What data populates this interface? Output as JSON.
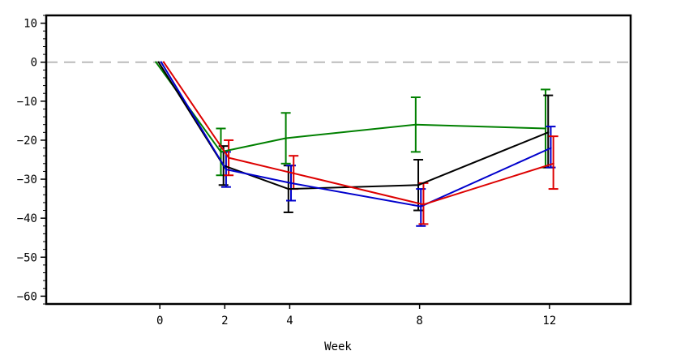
{
  "chart_data": {
    "type": "line",
    "title": "",
    "xlabel": "Week",
    "ylabel": "",
    "xlim": [
      -3.5,
      14.5
    ],
    "ylim": [
      -62,
      12
    ],
    "x_ticks": [
      0,
      2,
      4,
      8,
      12
    ],
    "x_tick_labels": [
      "0",
      "2",
      "4",
      "8",
      "12"
    ],
    "y_ticks": [
      10,
      0,
      -10,
      -20,
      -30,
      -40,
      -50,
      -60
    ],
    "y_tick_labels": [
      "10",
      "0",
      "−10",
      "−20",
      "−30",
      "−40",
      "−50",
      "−60"
    ],
    "reference_line": {
      "y": 0,
      "style": "dashed",
      "color": "#bbbbbb"
    },
    "grid": false,
    "legend": "none",
    "series": [
      {
        "color": "#008000",
        "x": [
          0,
          2,
          4,
          8,
          12
        ],
        "values": [
          0,
          -23,
          -19.5,
          -16,
          -17
        ],
        "err_low": [
          null,
          -29,
          -26,
          -23,
          -27
        ],
        "err_high": [
          null,
          -17,
          -13,
          -9,
          -7
        ]
      },
      {
        "color": "#000000",
        "x": [
          0,
          2,
          4,
          8,
          12
        ],
        "values": [
          0,
          -26.5,
          -32.5,
          -31.5,
          -18
        ],
        "err_low": [
          null,
          -31.5,
          -38.5,
          -38,
          -27
        ],
        "err_high": [
          null,
          -21.5,
          -26.5,
          -25,
          -8.5
        ]
      },
      {
        "color": "#0000cc",
        "x": [
          0,
          2,
          4,
          8,
          12
        ],
        "values": [
          0,
          -27.5,
          -31,
          -37,
          -22
        ],
        "err_low": [
          null,
          -32,
          -35.5,
          -42,
          -27
        ],
        "err_high": [
          null,
          -23,
          -26.5,
          -32.5,
          -16.5
        ]
      },
      {
        "color": "#dd0000",
        "x": [
          0,
          2,
          4,
          8,
          12
        ],
        "values": [
          0,
          -24.5,
          -28.5,
          -36.5,
          -26
        ],
        "err_low": [
          null,
          -29,
          -32.5,
          -41.5,
          -32.5
        ],
        "err_high": [
          null,
          -20,
          -24,
          -31,
          -19
        ]
      }
    ]
  }
}
